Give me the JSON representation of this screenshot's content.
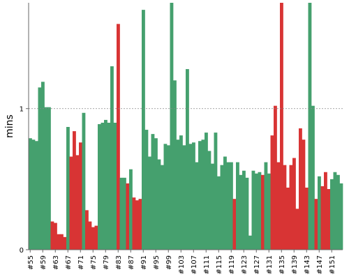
{
  "chart_data": {
    "type": "area",
    "ylabel": "mins",
    "ylim": [
      0,
      1.75
    ],
    "y_ticks": [
      {
        "value": 0,
        "label": "0"
      },
      {
        "value": 1,
        "label": "1"
      }
    ],
    "reference_line": {
      "value": 1,
      "style": "dotted"
    },
    "x_tick_labels": [
      "#55",
      "#59",
      "#63",
      "#67",
      "#71",
      "#75",
      "#79",
      "#83",
      "#87",
      "#91",
      "#95",
      "#99",
      "#103",
      "#107",
      "#111",
      "#115",
      "#119",
      "#123",
      "#127",
      "#131",
      "#135",
      "#139",
      "#143",
      "#147",
      "#151"
    ],
    "x_tick_step": 4,
    "x_start": 55,
    "colors": {
      "good": "#45a06e",
      "bad": "#d83434",
      "axis": "#666666",
      "grid": "#888888"
    },
    "series": [
      {
        "values": [
          0.79,
          0.78,
          0.77,
          1.15,
          1.19,
          1.01,
          1.01,
          0.2,
          0.19,
          0.11,
          0.11,
          0.09,
          0.87,
          0.66,
          0.84,
          0.67,
          0.76,
          0.97,
          0.28,
          0.2,
          0.16,
          0.17,
          0.89,
          0.9,
          0.92,
          0.9,
          1.3,
          0.9,
          1.6,
          0.51,
          0.51,
          0.47,
          0.57,
          0.37,
          0.35,
          0.36,
          1.7,
          0.85,
          0.66,
          0.82,
          0.79,
          0.64,
          0.6,
          0.75,
          0.74,
          1.85,
          1.2,
          0.78,
          0.81,
          0.74,
          1.28,
          0.75,
          0.76,
          0.62,
          0.77,
          0.78,
          0.83,
          0.7,
          0.61,
          0.83,
          0.52,
          0.6,
          0.66,
          0.62,
          0.62,
          0.36,
          0.62,
          0.53,
          0.56,
          0.51,
          0.1,
          0.56,
          0.54,
          0.55,
          0.53,
          0.62,
          0.54,
          0.81,
          1.02,
          0.62,
          1.85,
          0.6,
          0.44,
          0.6,
          0.65,
          0.29,
          0.86,
          0.78,
          0.44,
          1.85,
          1.02,
          0.36,
          0.52,
          0.45,
          0.55,
          0.43,
          0.5,
          0.55,
          0.53,
          0.47
        ],
        "exceeds": [
          0,
          0,
          0,
          0,
          0,
          0,
          0,
          1,
          1,
          1,
          1,
          1,
          0,
          1,
          1,
          1,
          1,
          0,
          1,
          1,
          1,
          1,
          0,
          0,
          0,
          0,
          0,
          0,
          1,
          0,
          0,
          1,
          0,
          1,
          1,
          1,
          0,
          0,
          0,
          0,
          0,
          0,
          0,
          0,
          0,
          0,
          0,
          0,
          0,
          0,
          0,
          0,
          0,
          0,
          0,
          0,
          0,
          0,
          0,
          0,
          0,
          0,
          0,
          0,
          0,
          1,
          0,
          0,
          0,
          0,
          0,
          0,
          0,
          0,
          1,
          0,
          0,
          1,
          1,
          1,
          1,
          1,
          1,
          1,
          1,
          1,
          1,
          1,
          1,
          0,
          0,
          1,
          0,
          1,
          1,
          1,
          0,
          0,
          0,
          0
        ]
      }
    ]
  }
}
